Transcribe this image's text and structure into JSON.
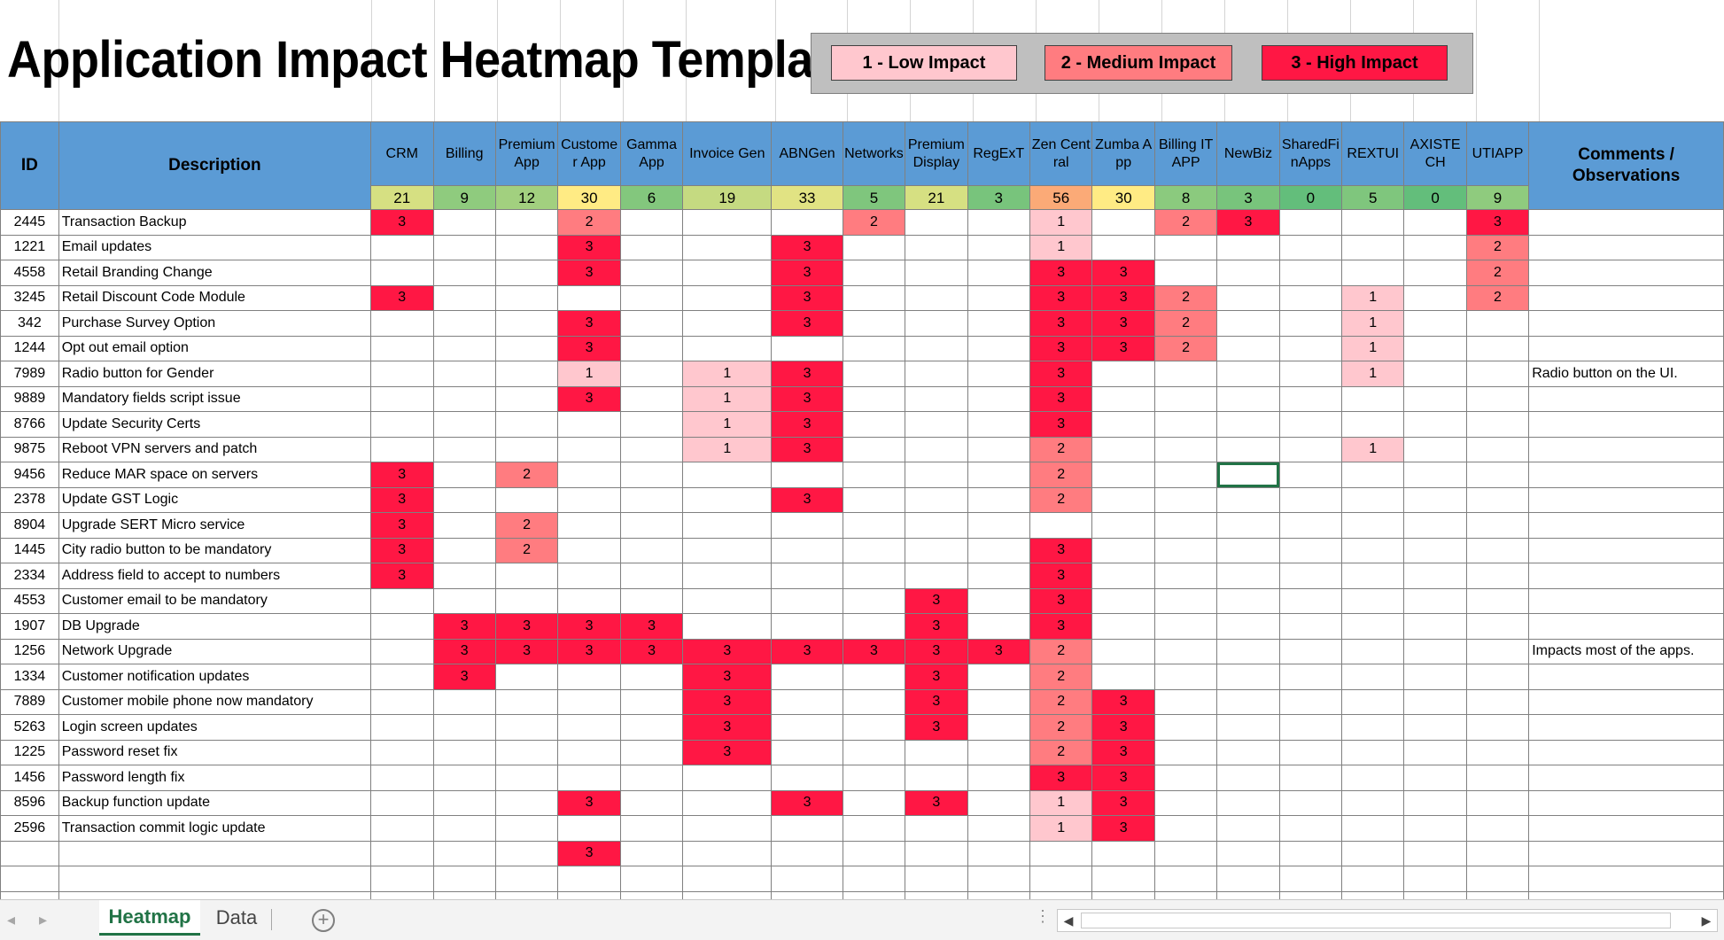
{
  "title": "Application Impact Heatmap Template",
  "legend": [
    {
      "label": "1 - Low Impact",
      "color": "#ffc7ce"
    },
    {
      "label": "2 - Medium Impact",
      "color": "#ff7c80"
    },
    {
      "label": "3 - High Impact",
      "color": "#ff1744"
    }
  ],
  "header": {
    "id": "ID",
    "description": "Description",
    "comments": "Comments / Observations"
  },
  "columns": [
    {
      "name": "CRM",
      "count": "21"
    },
    {
      "name": "Billing",
      "count": "9"
    },
    {
      "name": "Premium App",
      "count": "12"
    },
    {
      "name": "Customer App",
      "count": "30"
    },
    {
      "name": "Gamma App",
      "count": "6"
    },
    {
      "name": "Invoice Gen",
      "count": "19"
    },
    {
      "name": "ABNGen",
      "count": "33"
    },
    {
      "name": "Networks",
      "count": "5"
    },
    {
      "name": "Premium Display",
      "count": "21"
    },
    {
      "name": "RegExT",
      "count": "3"
    },
    {
      "name": "Zen Central",
      "count": "56"
    },
    {
      "name": "Zumba App",
      "count": "30"
    },
    {
      "name": "Billing ITAPP",
      "count": "8"
    },
    {
      "name": "NewBiz",
      "count": "3"
    },
    {
      "name": "SharedFinApps",
      "count": "0"
    },
    {
      "name": "REXTUI",
      "count": "5"
    },
    {
      "name": "AXISTECH",
      "count": "0"
    },
    {
      "name": "UTIAPP",
      "count": "9"
    }
  ],
  "count_colors": {
    "0": "#63be7b",
    "3": "#78c47c",
    "5": "#7fc67d",
    "6": "#83c77d",
    "8": "#8bca7e",
    "9": "#8fcb7e",
    "12": "#a2d07f",
    "19": "#c5da81",
    "21": "#d6e082",
    "30": "#ffeb84",
    "33": "#e1e383",
    "56": "#fbaa77"
  },
  "rows": [
    {
      "id": "2445",
      "desc": "Transaction Backup",
      "vals": [
        3,
        "",
        "",
        2,
        "",
        "",
        "",
        2,
        "",
        "",
        1,
        "",
        2,
        3,
        "",
        "",
        "",
        3
      ],
      "comment": ""
    },
    {
      "id": "1221",
      "desc": "Email updates",
      "vals": [
        "",
        "",
        "",
        3,
        "",
        "",
        3,
        "",
        "",
        "",
        1,
        "",
        "",
        "",
        "",
        "",
        "",
        2
      ],
      "comment": ""
    },
    {
      "id": "4558",
      "desc": "Retail Branding Change",
      "vals": [
        "",
        "",
        "",
        3,
        "",
        "",
        3,
        "",
        "",
        "",
        3,
        3,
        "",
        "",
        "",
        "",
        "",
        2
      ],
      "comment": ""
    },
    {
      "id": "3245",
      "desc": "Retail Discount Code Module",
      "vals": [
        3,
        "",
        "",
        "",
        "",
        "",
        3,
        "",
        "",
        "",
        3,
        3,
        2,
        "",
        "",
        1,
        "",
        2
      ],
      "comment": ""
    },
    {
      "id": "342",
      "desc": "Purchase Survey Option",
      "vals": [
        "",
        "",
        "",
        3,
        "",
        "",
        3,
        "",
        "",
        "",
        3,
        3,
        2,
        "",
        "",
        1,
        "",
        ""
      ],
      "comment": ""
    },
    {
      "id": "1244",
      "desc": "Opt out email option",
      "vals": [
        "",
        "",
        "",
        3,
        "",
        "",
        "",
        "",
        "",
        "",
        3,
        3,
        2,
        "",
        "",
        1,
        "",
        ""
      ],
      "comment": ""
    },
    {
      "id": "7989",
      "desc": "Radio button for Gender",
      "vals": [
        "",
        "",
        "",
        1,
        "",
        1,
        3,
        "",
        "",
        "",
        3,
        "",
        "",
        "",
        "",
        1,
        "",
        ""
      ],
      "comment": "Radio button on the UI."
    },
    {
      "id": "9889",
      "desc": "Mandatory fields script issue",
      "vals": [
        "",
        "",
        "",
        3,
        "",
        1,
        3,
        "",
        "",
        "",
        3,
        "",
        "",
        "",
        "",
        "",
        "",
        ""
      ],
      "comment": ""
    },
    {
      "id": "8766",
      "desc": "Update Security Certs",
      "vals": [
        "",
        "",
        "",
        "",
        "",
        1,
        3,
        "",
        "",
        "",
        3,
        "",
        "",
        "",
        "",
        "",
        "",
        ""
      ],
      "comment": ""
    },
    {
      "id": "9875",
      "desc": "Reboot VPN servers and patch",
      "vals": [
        "",
        "",
        "",
        "",
        "",
        1,
        3,
        "",
        "",
        "",
        2,
        "",
        "",
        "",
        "",
        1,
        "",
        ""
      ],
      "comment": ""
    },
    {
      "id": "9456",
      "desc": "Reduce MAR space on servers",
      "vals": [
        3,
        "",
        2,
        "",
        "",
        "",
        "",
        "",
        "",
        "",
        2,
        "",
        "",
        "",
        "",
        "",
        "",
        ""
      ],
      "comment": ""
    },
    {
      "id": "2378",
      "desc": "Update GST Logic",
      "vals": [
        3,
        "",
        "",
        "",
        "",
        "",
        3,
        "",
        "",
        "",
        2,
        "",
        "",
        "",
        "",
        "",
        "",
        ""
      ],
      "comment": ""
    },
    {
      "id": "8904",
      "desc": "Upgrade SERT Micro service",
      "vals": [
        3,
        "",
        2,
        "",
        "",
        "",
        "",
        "",
        "",
        "",
        "",
        "",
        "",
        "",
        "",
        "",
        "",
        ""
      ],
      "comment": ""
    },
    {
      "id": "1445",
      "desc": "City radio button to be mandatory",
      "vals": [
        3,
        "",
        2,
        "",
        "",
        "",
        "",
        "",
        "",
        "",
        3,
        "",
        "",
        "",
        "",
        "",
        "",
        ""
      ],
      "comment": ""
    },
    {
      "id": "2334",
      "desc": "Address field to accept to numbers",
      "vals": [
        3,
        "",
        "",
        "",
        "",
        "",
        "",
        "",
        "",
        "",
        3,
        "",
        "",
        "",
        "",
        "",
        "",
        ""
      ],
      "comment": ""
    },
    {
      "id": "4553",
      "desc": "Customer email to be mandatory",
      "vals": [
        "",
        "",
        "",
        "",
        "",
        "",
        "",
        "",
        3,
        "",
        3,
        "",
        "",
        "",
        "",
        "",
        "",
        ""
      ],
      "comment": ""
    },
    {
      "id": "1907",
      "desc": "DB Upgrade",
      "vals": [
        "",
        3,
        3,
        3,
        3,
        "",
        "",
        "",
        3,
        "",
        3,
        "",
        "",
        "",
        "",
        "",
        "",
        ""
      ],
      "comment": ""
    },
    {
      "id": "1256",
      "desc": "Network Upgrade",
      "vals": [
        "",
        3,
        3,
        3,
        3,
        3,
        3,
        3,
        3,
        3,
        2,
        "",
        "",
        "",
        "",
        "",
        "",
        ""
      ],
      "comment": "Impacts most of the apps."
    },
    {
      "id": "1334",
      "desc": "Customer notification updates",
      "vals": [
        "",
        3,
        "",
        "",
        "",
        3,
        "",
        "",
        3,
        "",
        2,
        "",
        "",
        "",
        "",
        "",
        "",
        ""
      ],
      "comment": ""
    },
    {
      "id": "7889",
      "desc": "Customer mobile phone now mandatory",
      "vals": [
        "",
        "",
        "",
        "",
        "",
        3,
        "",
        "",
        3,
        "",
        2,
        3,
        "",
        "",
        "",
        "",
        "",
        ""
      ],
      "comment": ""
    },
    {
      "id": "5263",
      "desc": "Login screen updates",
      "vals": [
        "",
        "",
        "",
        "",
        "",
        3,
        "",
        "",
        3,
        "",
        2,
        3,
        "",
        "",
        "",
        "",
        "",
        ""
      ],
      "comment": ""
    },
    {
      "id": "1225",
      "desc": "Password reset fix",
      "vals": [
        "",
        "",
        "",
        "",
        "",
        3,
        "",
        "",
        "",
        "",
        2,
        3,
        "",
        "",
        "",
        "",
        "",
        ""
      ],
      "comment": ""
    },
    {
      "id": "1456",
      "desc": "Password length fix",
      "vals": [
        "",
        "",
        "",
        "",
        "",
        "",
        "",
        "",
        "",
        "",
        3,
        3,
        "",
        "",
        "",
        "",
        "",
        ""
      ],
      "comment": ""
    },
    {
      "id": "8596",
      "desc": "Backup function update",
      "vals": [
        "",
        "",
        "",
        3,
        "",
        "",
        3,
        "",
        3,
        "",
        1,
        3,
        "",
        "",
        "",
        "",
        "",
        ""
      ],
      "comment": ""
    },
    {
      "id": "2596",
      "desc": "Transaction commit logic update",
      "vals": [
        "",
        "",
        "",
        "",
        "",
        "",
        "",
        "",
        "",
        "",
        1,
        3,
        "",
        "",
        "",
        "",
        "",
        ""
      ],
      "comment": ""
    },
    {
      "id": "",
      "desc": "",
      "vals": [
        "",
        "",
        "",
        3,
        "",
        "",
        "",
        "",
        "",
        "",
        "",
        "",
        "",
        "",
        "",
        "",
        "",
        ""
      ],
      "comment": ""
    },
    {
      "id": "",
      "desc": "",
      "vals": [
        "",
        "",
        "",
        "",
        "",
        "",
        "",
        "",
        "",
        "",
        "",
        "",
        "",
        "",
        "",
        "",
        "",
        ""
      ],
      "comment": ""
    },
    {
      "id": "",
      "desc": "",
      "vals": [
        "",
        "",
        "",
        "",
        "",
        "",
        "",
        "",
        "",
        "",
        "",
        "",
        "",
        "",
        "",
        "",
        "",
        ""
      ],
      "comment": ""
    }
  ],
  "selected_cell": {
    "row": 10,
    "col": 13
  },
  "tabs": [
    {
      "label": "Heatmap",
      "active": true
    },
    {
      "label": "Data",
      "active": false
    }
  ],
  "add_sheet_label": "+",
  "scroll_left": "◀",
  "scroll_right": "▶"
}
